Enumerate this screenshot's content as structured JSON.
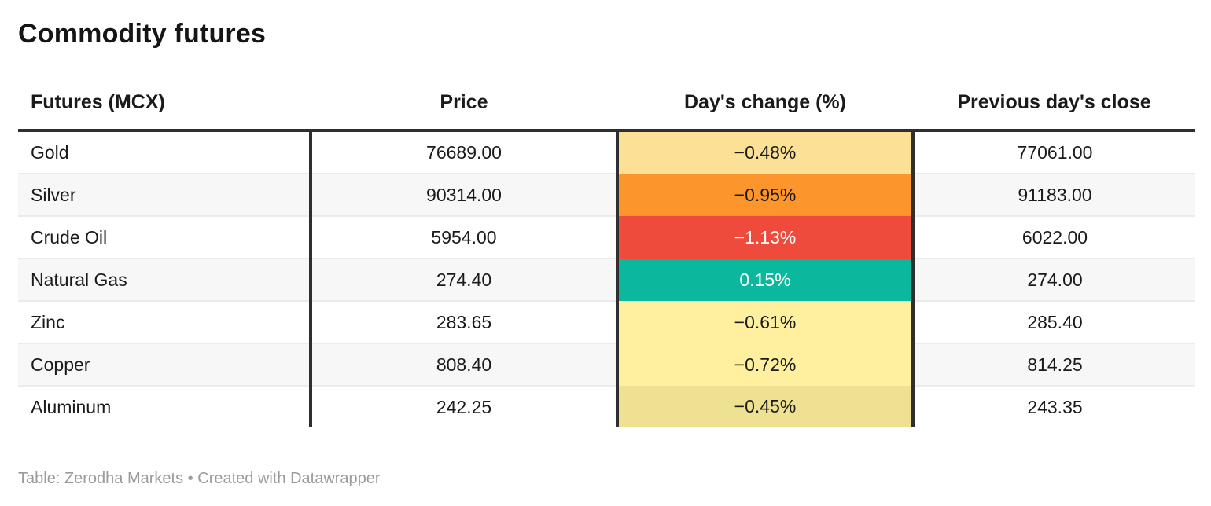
{
  "header": {
    "title": "Commodity futures"
  },
  "chart_data": {
    "type": "table",
    "title": "Commodity futures",
    "columns": [
      "Futures (MCX)",
      "Price",
      "Day's change (%)",
      "Previous day's close"
    ],
    "rows": [
      {
        "futures": "Gold",
        "price": "76689.00",
        "change": "−0.48%",
        "prev_close": "77061.00",
        "change_bg": "#fbe096",
        "change_fg": "#1a1a1a"
      },
      {
        "futures": "Silver",
        "price": "90314.00",
        "change": "−0.95%",
        "prev_close": "91183.00",
        "change_bg": "#fb952c",
        "change_fg": "#1a1a1a"
      },
      {
        "futures": "Crude Oil",
        "price": "5954.00",
        "change": "−1.13%",
        "prev_close": "6022.00",
        "change_bg": "#ee4b3d",
        "change_fg": "#ffffff"
      },
      {
        "futures": "Natural Gas",
        "price": "274.40",
        "change": "0.15%",
        "prev_close": "274.00",
        "change_bg": "#0cb89d",
        "change_fg": "#ffffff"
      },
      {
        "futures": "Zinc",
        "price": "283.65",
        "change": "−0.61%",
        "prev_close": "285.40",
        "change_bg": "#fff0a0",
        "change_fg": "#1a1a1a"
      },
      {
        "futures": "Copper",
        "price": "808.40",
        "change": "−0.72%",
        "prev_close": "814.25",
        "change_bg": "#fff0a0",
        "change_fg": "#1a1a1a"
      },
      {
        "futures": "Aluminum",
        "price": "242.25",
        "change": "−0.45%",
        "prev_close": "243.35",
        "change_bg": "#eee292",
        "change_fg": "#1a1a1a"
      }
    ],
    "layout_hints": {
      "zebra_stripe_color": "#f7f7f7",
      "rule_color": "#2f2f2f",
      "separator_color": "#ebebeb",
      "legend": "none",
      "grid": "off"
    }
  },
  "footer": {
    "source_label": "Table: Zerodha Markets",
    "separator": "•",
    "credit": "Created with Datawrapper"
  }
}
